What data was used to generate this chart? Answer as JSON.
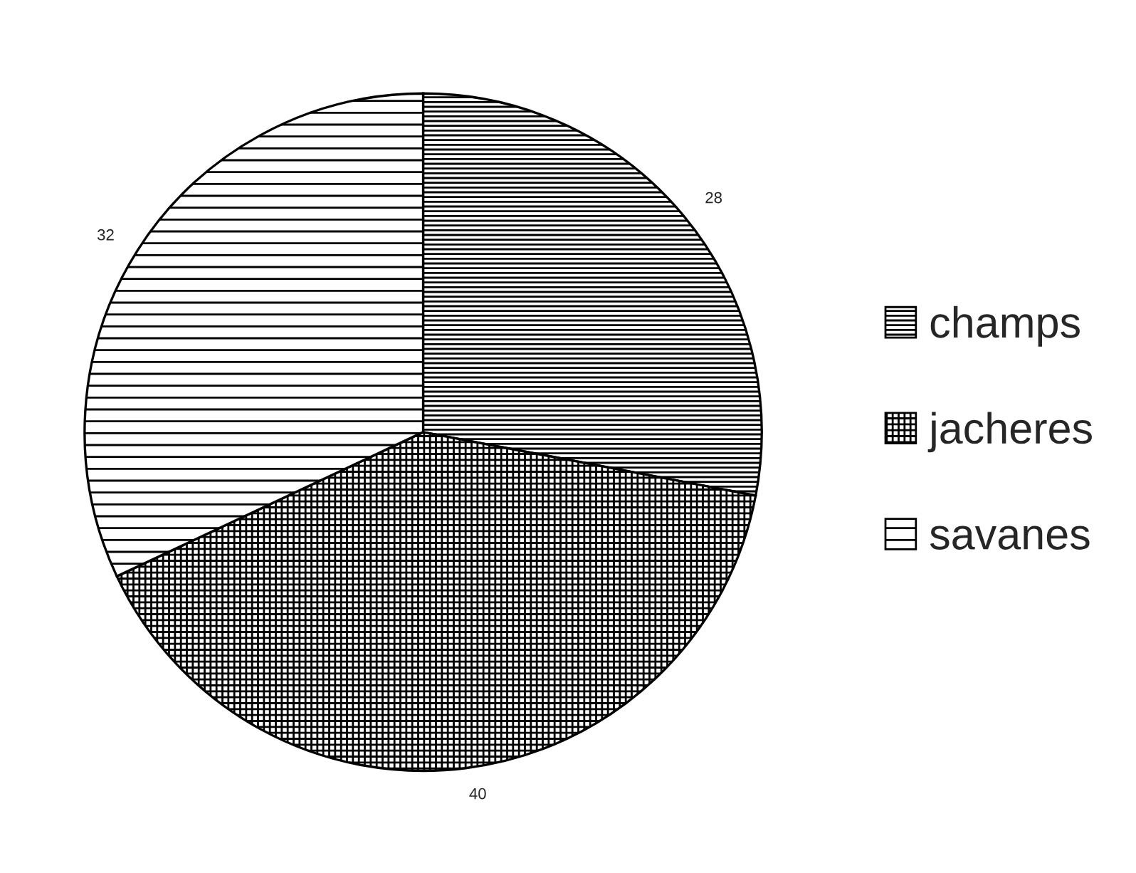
{
  "chart_data": {
    "type": "pie",
    "categories": [
      "champs",
      "jacheres",
      "savanes"
    ],
    "values": [
      28,
      40,
      32
    ],
    "colors": [
      "#000000",
      "#000000",
      "#000000"
    ],
    "data_labels": true,
    "legend": "right"
  }
}
